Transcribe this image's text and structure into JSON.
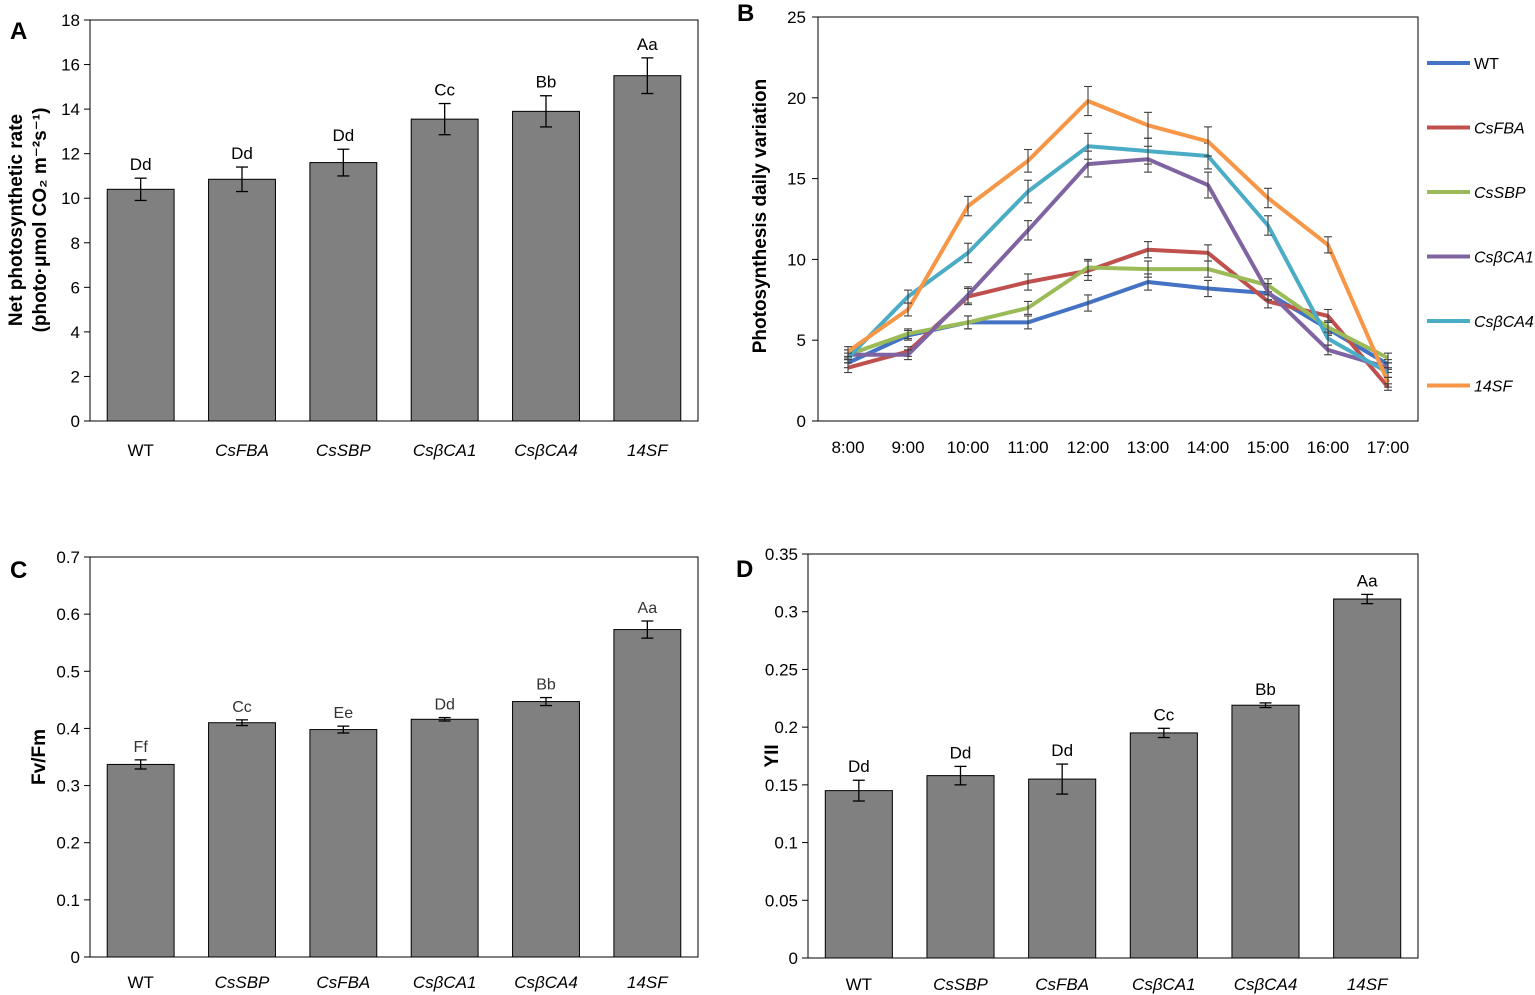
{
  "chart_data": [
    {
      "panel": "A",
      "type": "bar",
      "ylabel_line1": "Net photosynthetic rate",
      "ylabel_line2": "(photo·μmol CO₂ m⁻²s⁻¹)",
      "categories": [
        "WT",
        "CsFBA",
        "CsSBP",
        "CsβCA1",
        "CsβCA4",
        "14SF"
      ],
      "italic_categories": [
        false,
        true,
        true,
        true,
        true,
        true
      ],
      "values": [
        10.4,
        10.85,
        11.6,
        13.55,
        13.9,
        15.5
      ],
      "errors": [
        0.5,
        0.55,
        0.6,
        0.7,
        0.7,
        0.8
      ],
      "labels": [
        "Dd",
        "Dd",
        "Dd",
        "Cc",
        "Bb",
        "Aa"
      ],
      "ylim": [
        0,
        18
      ],
      "yticks": [
        0,
        2,
        4,
        6,
        8,
        10,
        12,
        14,
        16,
        18
      ],
      "bar_color": "#808080",
      "grid": false
    },
    {
      "panel": "B",
      "type": "line",
      "ylabel": "Photosynthesis daily variation",
      "x": [
        "8:00",
        "9:00",
        "10:00",
        "11:00",
        "12:00",
        "13:00",
        "14:00",
        "15:00",
        "16:00",
        "17:00"
      ],
      "ylim": [
        0,
        25
      ],
      "yticks": [
        0,
        5,
        10,
        15,
        20,
        25
      ],
      "legend_position": "right",
      "series": [
        {
          "name": "WT",
          "italic": false,
          "color": "#4472C4",
          "values": [
            3.6,
            5.3,
            6.1,
            6.1,
            7.3,
            8.6,
            8.2,
            7.9,
            5.7,
            3.5
          ],
          "errors": [
            0.3,
            0.3,
            0.4,
            0.4,
            0.5,
            0.5,
            0.5,
            0.4,
            0.4,
            0.3
          ]
        },
        {
          "name": "CsFBA",
          "italic": true,
          "color": "#C0504D",
          "values": [
            3.3,
            4.3,
            7.7,
            8.6,
            9.3,
            10.6,
            10.4,
            7.4,
            6.5,
            2.1
          ],
          "errors": [
            0.3,
            0.3,
            0.5,
            0.5,
            0.6,
            0.5,
            0.5,
            0.4,
            0.4,
            0.2
          ]
        },
        {
          "name": "CsSBP",
          "italic": true,
          "color": "#9BBB59",
          "values": [
            4.1,
            5.4,
            6.1,
            7.0,
            9.5,
            9.4,
            9.4,
            8.4,
            5.8,
            3.9
          ],
          "errors": [
            0.3,
            0.3,
            0.4,
            0.4,
            0.5,
            0.5,
            0.5,
            0.4,
            0.4,
            0.3
          ]
        },
        {
          "name": "CsβCA1",
          "italic": true,
          "color": "#8064A2",
          "values": [
            4.1,
            4.1,
            7.8,
            11.8,
            15.9,
            16.2,
            14.6,
            8.0,
            4.4,
            3.3
          ],
          "errors": [
            0.3,
            0.3,
            0.5,
            0.6,
            0.8,
            0.8,
            0.8,
            0.5,
            0.3,
            0.3
          ]
        },
        {
          "name": "CsβCA4",
          "italic": true,
          "color": "#4BACC6",
          "values": [
            3.9,
            7.7,
            10.4,
            14.2,
            17.0,
            16.7,
            16.4,
            12.1,
            5.1,
            3.0
          ],
          "errors": [
            0.3,
            0.4,
            0.6,
            0.7,
            0.8,
            0.8,
            0.8,
            0.6,
            0.4,
            0.3
          ]
        },
        {
          "name": "14SF",
          "italic": true,
          "color": "#F79646",
          "values": [
            4.3,
            6.9,
            13.3,
            16.1,
            19.8,
            18.3,
            17.3,
            13.8,
            10.9,
            2.4
          ],
          "errors": [
            0.3,
            0.4,
            0.6,
            0.7,
            0.9,
            0.8,
            0.9,
            0.6,
            0.5,
            0.3
          ]
        }
      ]
    },
    {
      "panel": "C",
      "type": "bar",
      "ylabel": "Fv/Fm",
      "categories": [
        "WT",
        "CsSBP",
        "CsFBA",
        "CsβCA1",
        "CsβCA4",
        "14SF"
      ],
      "italic_categories": [
        false,
        true,
        true,
        true,
        true,
        true
      ],
      "values": [
        0.337,
        0.41,
        0.398,
        0.416,
        0.447,
        0.573
      ],
      "errors": [
        0.008,
        0.005,
        0.006,
        0.003,
        0.007,
        0.015
      ],
      "labels": [
        "Ff",
        "Cc",
        "Ee",
        "Dd",
        "Bb",
        "Aa"
      ],
      "ylim": [
        0,
        0.7
      ],
      "yticks": [
        0,
        0.1,
        0.2,
        0.3,
        0.4,
        0.5,
        0.6,
        0.7
      ],
      "bar_color": "#808080",
      "grid": false
    },
    {
      "panel": "D",
      "type": "bar",
      "ylabel": "YII",
      "categories": [
        "WT",
        "CsSBP",
        "CsFBA",
        "CsβCA1",
        "CsβCA4",
        "14SF"
      ],
      "italic_categories": [
        false,
        true,
        true,
        true,
        true,
        true
      ],
      "values": [
        0.145,
        0.158,
        0.155,
        0.195,
        0.219,
        0.311
      ],
      "errors": [
        0.009,
        0.008,
        0.013,
        0.004,
        0.002,
        0.004
      ],
      "labels": [
        "Dd",
        "Dd",
        "Dd",
        "Cc",
        "Bb",
        "Aa"
      ],
      "ylim": [
        0,
        0.35
      ],
      "yticks": [
        0,
        0.05,
        0.1,
        0.15,
        0.2,
        0.25,
        0.3,
        0.35
      ],
      "bar_color": "#808080",
      "grid": false
    }
  ]
}
